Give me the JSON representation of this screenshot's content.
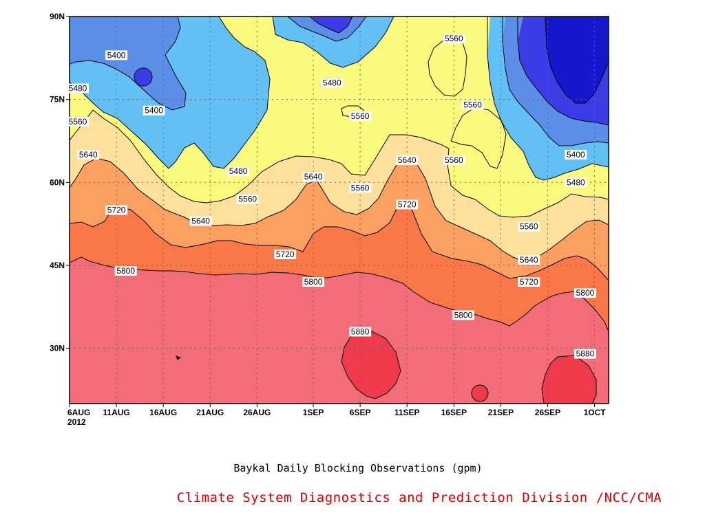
{
  "chart_data": {
    "type": "contour",
    "title": "Baykal Daily Blocking Observations (gpm)",
    "credit": "Climate System Diagnostics and Prediction Division /NCC/CMA",
    "xlabel": "",
    "ylabel": "",
    "x_ticks": [
      "6AUG",
      "11AUG",
      "16AUG",
      "21AUG",
      "26AUG",
      "1SEP",
      "6SEP",
      "11SEP",
      "16SEP",
      "21SEP",
      "26SEP",
      "1OCT"
    ],
    "x_year_label": "2012",
    "y_ticks": [
      "30N",
      "45N",
      "60N",
      "75N",
      "90N"
    ],
    "ylim": [
      20,
      90
    ],
    "contour_levels": [
      5400,
      5480,
      5560,
      5640,
      5720,
      5800,
      5880
    ],
    "fill_colors": {
      "below_5400": "#5b8ee6",
      "5400_5480": "#63c0f5",
      "5480_5560": "#fafa7e",
      "5560_5640": "#fde09c",
      "5640_5720": "#fba060",
      "5720_5800": "#fa7848",
      "5800_5880": "#f26d78",
      "above_5880": "#ee3a4a",
      "deep_low": "#3c3ce6",
      "deepest_low": "#1616cc"
    },
    "contour_labels": [
      {
        "value": "5400",
        "date": "11AUG",
        "lat": 83
      },
      {
        "value": "5400",
        "date": "15AUG",
        "lat": 73
      },
      {
        "value": "5400",
        "date": "29SEP",
        "lat": 65
      },
      {
        "value": "5480",
        "date": "6AUG",
        "lat": 77
      },
      {
        "value": "5480",
        "date": "24AUG",
        "lat": 62
      },
      {
        "value": "5480",
        "date": "3SEP",
        "lat": 78
      },
      {
        "value": "5480",
        "date": "29SEP",
        "lat": 60
      },
      {
        "value": "5560",
        "date": "6AUG",
        "lat": 71
      },
      {
        "value": "5560",
        "date": "25AUG",
        "lat": 57
      },
      {
        "value": "5560",
        "date": "6SEP",
        "lat": 72
      },
      {
        "value": "5560",
        "date": "6SEP",
        "lat": 59
      },
      {
        "value": "5560",
        "date": "16SEP",
        "lat": 86
      },
      {
        "value": "5560",
        "date": "18SEP",
        "lat": 74
      },
      {
        "value": "5560",
        "date": "16SEP",
        "lat": 64
      },
      {
        "value": "5560",
        "date": "24SEP",
        "lat": 52
      },
      {
        "value": "5640",
        "date": "8AUG",
        "lat": 65
      },
      {
        "value": "5640",
        "date": "20AUG",
        "lat": 53
      },
      {
        "value": "5640",
        "date": "1SEP",
        "lat": 61
      },
      {
        "value": "5640",
        "date": "11SEP",
        "lat": 64
      },
      {
        "value": "5640",
        "date": "24SEP",
        "lat": 46
      },
      {
        "value": "5720",
        "date": "11AUG",
        "lat": 55
      },
      {
        "value": "5720",
        "date": "29AUG",
        "lat": 47
      },
      {
        "value": "5720",
        "date": "11SEP",
        "lat": 56
      },
      {
        "value": "5720",
        "date": "24SEP",
        "lat": 42
      },
      {
        "value": "5800",
        "date": "12AUG",
        "lat": 44
      },
      {
        "value": "5800",
        "date": "1SEP",
        "lat": 42
      },
      {
        "value": "5800",
        "date": "17SEP",
        "lat": 36
      },
      {
        "value": "5800",
        "date": "30SEP",
        "lat": 40
      },
      {
        "value": "5880",
        "date": "6SEP",
        "lat": 33
      },
      {
        "value": "5880",
        "date": "30SEP",
        "lat": 29
      }
    ],
    "grid": true,
    "legend": "none"
  }
}
